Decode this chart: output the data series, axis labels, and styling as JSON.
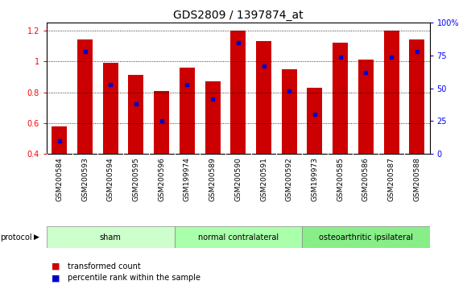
{
  "title": "GDS2809 / 1397874_at",
  "samples": [
    "GSM200584",
    "GSM200593",
    "GSM200594",
    "GSM200595",
    "GSM200596",
    "GSM199974",
    "GSM200589",
    "GSM200590",
    "GSM200591",
    "GSM200592",
    "GSM199973",
    "GSM200585",
    "GSM200586",
    "GSM200587",
    "GSM200588"
  ],
  "transformed_count": [
    0.58,
    1.14,
    0.99,
    0.91,
    0.81,
    0.96,
    0.87,
    1.2,
    1.13,
    0.95,
    0.83,
    1.12,
    1.01,
    1.2,
    1.14
  ],
  "percentile_pct": [
    10,
    78,
    53,
    38,
    25,
    53,
    42,
    85,
    67,
    48,
    30,
    74,
    62,
    74,
    78
  ],
  "groups": [
    {
      "label": "sham",
      "start": 0,
      "end": 5,
      "color": "#ccffcc"
    },
    {
      "label": "normal contralateral",
      "start": 5,
      "end": 10,
      "color": "#aaffaa"
    },
    {
      "label": "osteoarthritic ipsilateral",
      "start": 10,
      "end": 15,
      "color": "#88ee88"
    }
  ],
  "ylim_left": [
    0.4,
    1.25
  ],
  "ylim_right": [
    0,
    100
  ],
  "bar_color": "#cc0000",
  "dot_color": "#0000cc",
  "grid_color": "#000000",
  "title_fontsize": 10,
  "label_fontsize": 6.5,
  "tick_fontsize": 7,
  "legend_fontsize": 7,
  "protocol_label": "protocol",
  "left_yticks": [
    0.4,
    0.6,
    0.8,
    1.0,
    1.2
  ],
  "left_yticklabels": [
    "0.4",
    "0.6",
    "0.8",
    "1",
    "1.2"
  ],
  "right_ytick_labels": [
    "0",
    "25",
    "50",
    "75",
    "100%"
  ],
  "right_ytick_values": [
    0,
    25,
    50,
    75,
    100
  ]
}
